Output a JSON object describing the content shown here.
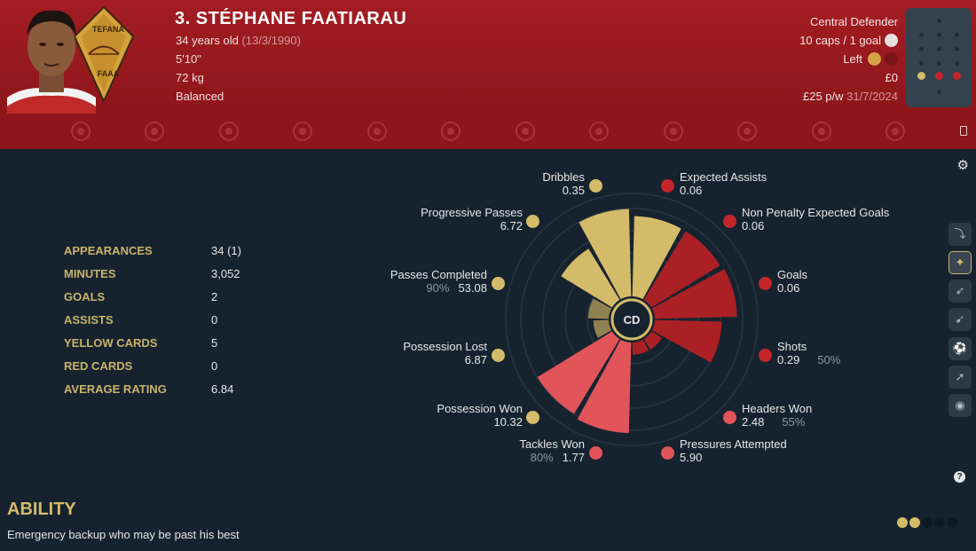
{
  "player": {
    "name": "3. STÉPHANE FAATIARAU",
    "age": "34 years old",
    "dob": "(13/3/1990)",
    "height": "5'10\"",
    "weight": "72 kg",
    "personality": "Balanced",
    "position": "Central Defender",
    "caps": "10 caps / 1 goal",
    "foot": "Left",
    "value": "£0",
    "wage": "£25 p/w",
    "contract_end": "31/7/2024"
  },
  "club_badge": {
    "lettering": [
      "TEFANA",
      "FAAA"
    ]
  },
  "colors": {
    "header": "#a21d22",
    "background": "#16232f",
    "gold": "#d4bb69",
    "red": "#c4252b",
    "light_red": "#e0545a"
  },
  "stats": [
    {
      "label": "APPEARANCES",
      "value": "34 (1)"
    },
    {
      "label": "MINUTES",
      "value": "3,052"
    },
    {
      "label": "GOALS",
      "value": "2"
    },
    {
      "label": "ASSISTS",
      "value": "0"
    },
    {
      "label": "YELLOW CARDS",
      "value": "5"
    },
    {
      "label": "RED CARDS",
      "value": "0"
    },
    {
      "label": "AVERAGE RATING",
      "value": "6.84"
    }
  ],
  "chart_data": {
    "type": "polar-bar",
    "center_label": "CD",
    "segments": [
      {
        "name": "Dribbles",
        "value": "0.35",
        "level": 0.78,
        "group": "gold"
      },
      {
        "name": "Expected Assists",
        "value": "0.06",
        "level": 0.78,
        "group": "red"
      },
      {
        "name": "Non Penalty Expected Goals",
        "value": "0.06",
        "level": 0.8,
        "group": "red"
      },
      {
        "name": "Goals",
        "value": "0.06",
        "level": 0.65,
        "group": "red"
      },
      {
        "name": "Shots",
        "value": "0.29",
        "pct": "50%",
        "level": 0.12,
        "group": "red"
      },
      {
        "name": "Headers Won",
        "value": "2.48",
        "pct": "55%",
        "level": 0.12,
        "group": "red"
      },
      {
        "name": "Pressures Attempted",
        "value": "5.90",
        "level": 0.88,
        "group": "lred"
      },
      {
        "name": "Tackles Won",
        "value": "1.77",
        "pct": "80%",
        "level": 0.85,
        "group": "lred"
      },
      {
        "name": "Possession Won",
        "value": "10.32",
        "level": 0.15,
        "group": "gold-dim"
      },
      {
        "name": "Possession Lost",
        "value": "6.87",
        "level": 0.2,
        "group": "gold-dim"
      },
      {
        "name": "Passes Completed",
        "value": "53.08",
        "pct": "90%",
        "level": 0.58,
        "group": "gold"
      },
      {
        "name": "Progressive Passes",
        "value": "6.72",
        "level": 0.85,
        "group": "gold"
      }
    ]
  },
  "ability": {
    "title": "ABILITY",
    "text": "Emergency backup who may be past his best",
    "stars_filled": 2,
    "stars_total": 5
  }
}
